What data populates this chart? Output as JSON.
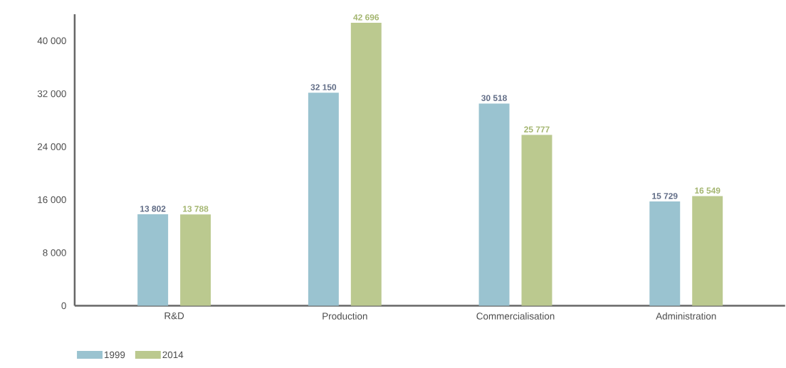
{
  "chart_data": {
    "type": "bar",
    "categories": [
      "R&D",
      "Production",
      "Commercialisation",
      "Administration"
    ],
    "series": [
      {
        "name": "1999",
        "color": "#9ac3d0",
        "values": [
          13802,
          32150,
          30518,
          15729
        ],
        "value_labels": [
          "13 802",
          "32 150",
          "30 518",
          "15 729"
        ]
      },
      {
        "name": "2014",
        "color": "#bbc98f",
        "values": [
          13788,
          42696,
          25777,
          16549
        ],
        "value_labels": [
          "13 788",
          "42 696",
          "25 777",
          "16 549"
        ]
      }
    ],
    "ylim": [
      0,
      44000
    ],
    "yticks": [
      {
        "value": 0,
        "label": "0"
      },
      {
        "value": 8000,
        "label": "8 000"
      },
      {
        "value": 16000,
        "label": "16 000"
      },
      {
        "value": 24000,
        "label": "24 000"
      },
      {
        "value": 32000,
        "label": "32 000"
      },
      {
        "value": 40000,
        "label": "40 000"
      }
    ],
    "grid": false,
    "legend": "bottom left"
  }
}
